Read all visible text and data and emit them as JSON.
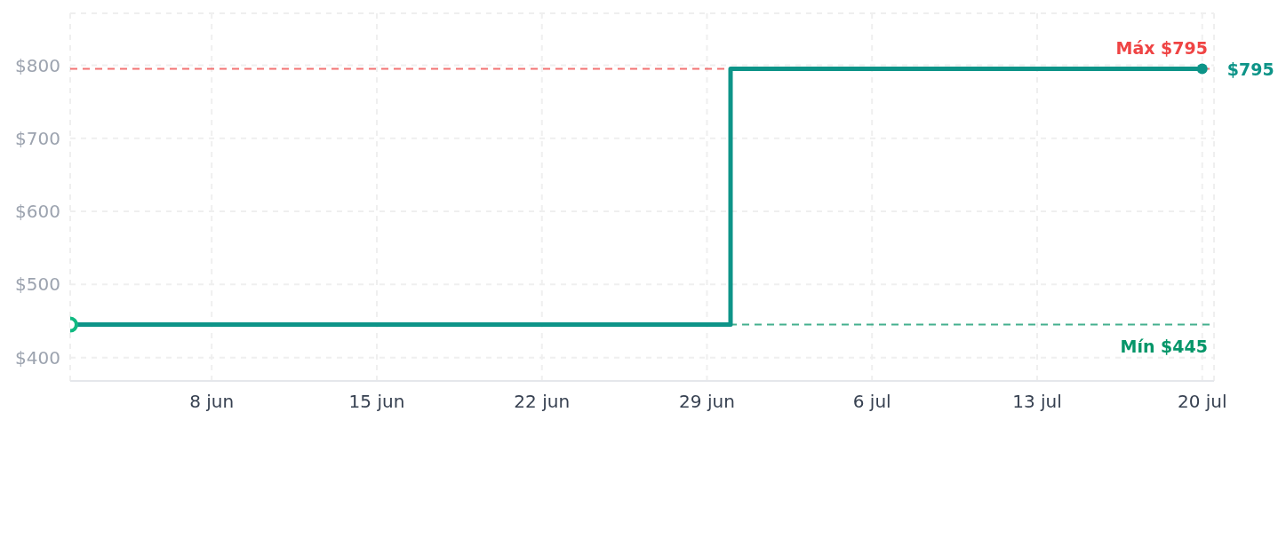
{
  "chart_data": {
    "type": "step",
    "xlim": [
      "--06-02",
      "--07-20T12:00"
    ],
    "xticks": [
      {
        "value": "--06-08",
        "label": "8 jun"
      },
      {
        "value": "--06-15",
        "label": "15 jun"
      },
      {
        "value": "--06-22",
        "label": "22 jun"
      },
      {
        "value": "--06-29",
        "label": "29 jun"
      },
      {
        "value": "--07-06",
        "label": "6 jul"
      },
      {
        "value": "--07-13",
        "label": "13 jul"
      },
      {
        "value": "--07-20",
        "label": "20 jul"
      }
    ],
    "ylim": [
      368,
      871
    ],
    "yticks": [
      {
        "value": 400,
        "label": "$400"
      },
      {
        "value": 500,
        "label": "$500"
      },
      {
        "value": 600,
        "label": "$600"
      },
      {
        "value": 700,
        "label": "$700"
      },
      {
        "value": 800,
        "label": "$800"
      }
    ],
    "grid": true,
    "series": [
      {
        "color": "#0d9488",
        "x": [
          "--06-02",
          "--06-30",
          "--07-20"
        ],
        "values": [
          445,
          795,
          795
        ],
        "marker": "none",
        "line_style": "solid"
      },
      {
        "type": "scatter",
        "x": [
          "--06-02",
          "--07-20"
        ],
        "values": [
          445,
          795
        ],
        "colors": [
          "#10b981",
          "#0d9488"
        ],
        "marker": "circle"
      }
    ],
    "ref_lines": [
      {
        "axis": "y",
        "value": 795,
        "label": "Máx $795",
        "color": "#ef4444",
        "line_style": "dashed"
      },
      {
        "axis": "y",
        "value": 445,
        "label": "Mín $445",
        "color": "#059669",
        "line_style": "dashed"
      }
    ],
    "annotations": [
      {
        "text": "$795",
        "x": "--07-20",
        "y": 795
      }
    ]
  }
}
